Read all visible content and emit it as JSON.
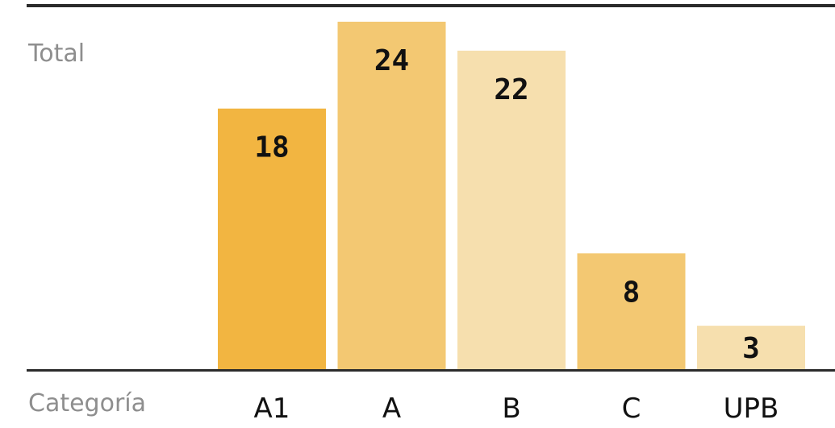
{
  "chart_data": {
    "type": "bar",
    "ylabel": "Total",
    "xlabel": "Categoría",
    "categories": [
      "A1",
      "A",
      "B",
      "C",
      "UPB"
    ],
    "values": [
      18,
      24,
      22,
      8,
      3
    ],
    "bar_colors": [
      "#f2b541",
      "#f3c872",
      "#f6dfae",
      "#f3c872",
      "#f6dfae"
    ],
    "ylim": [
      0,
      25.5
    ],
    "grid": false,
    "legend": "none"
  }
}
